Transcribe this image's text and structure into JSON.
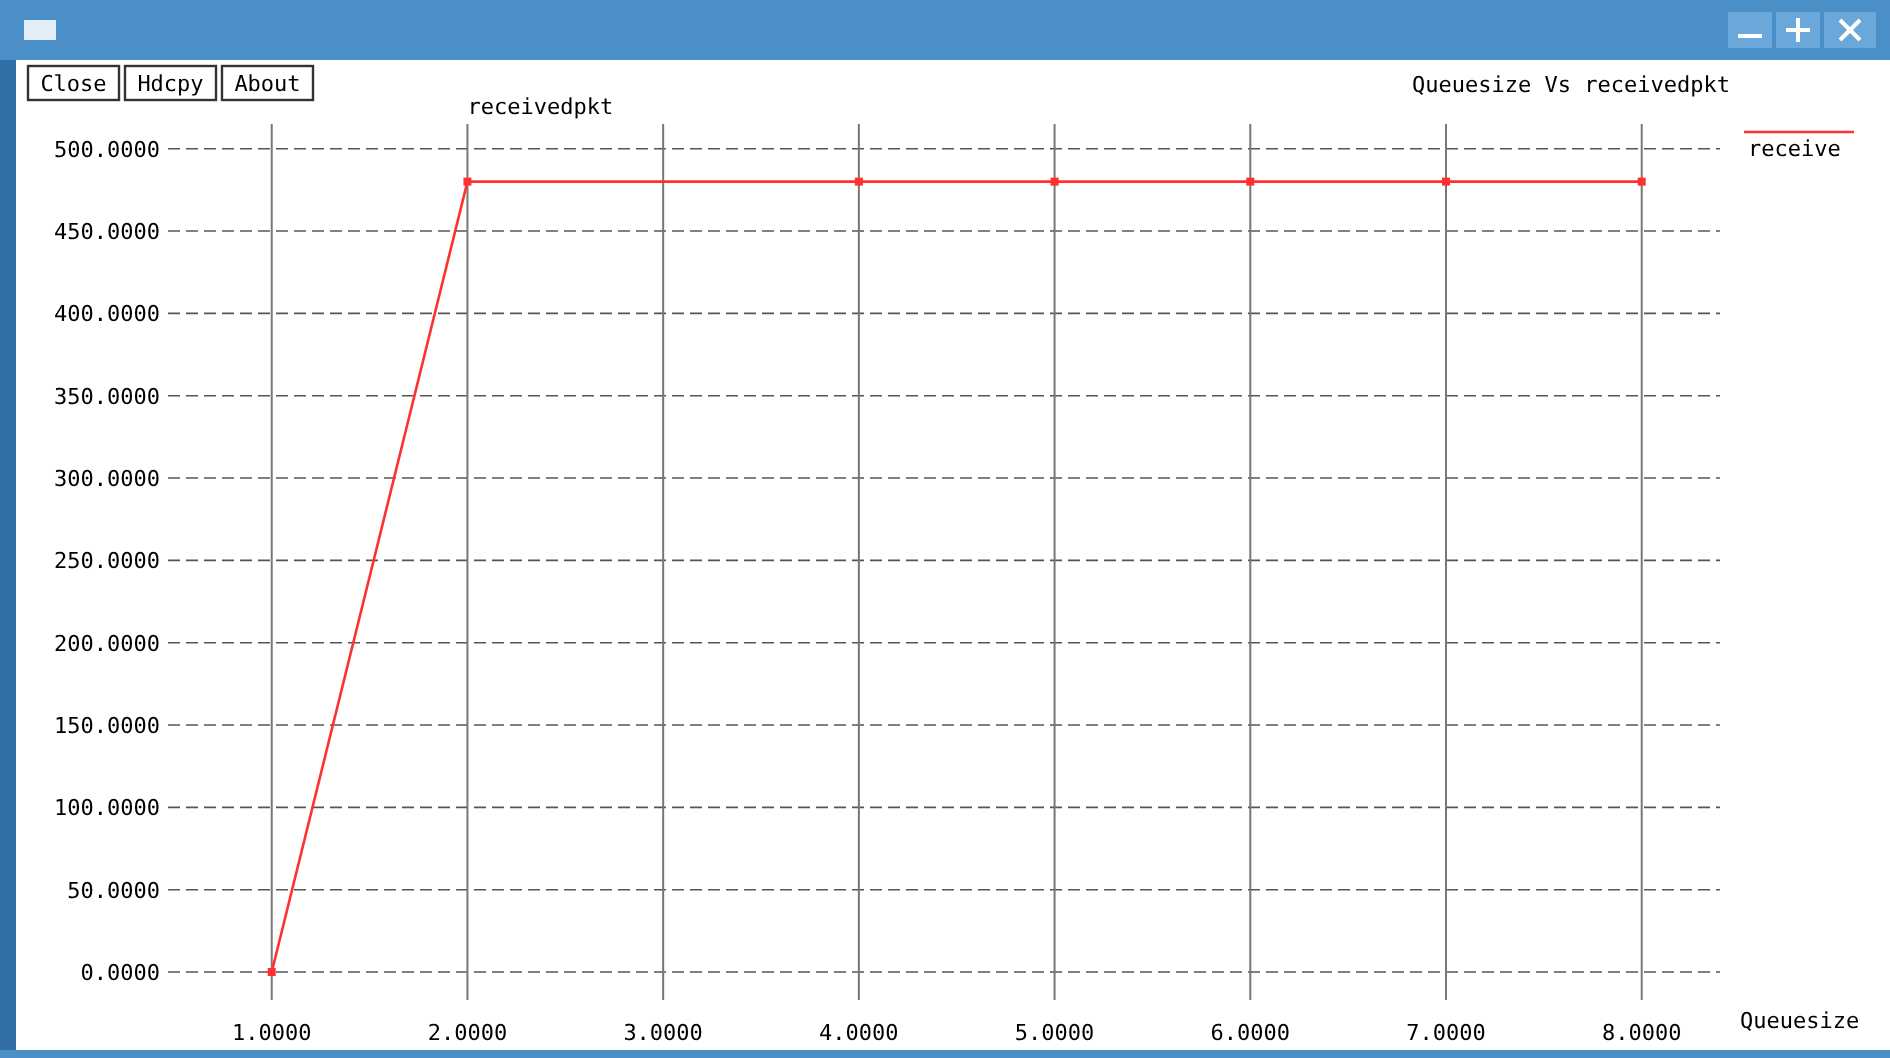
{
  "chart_data": {
    "type": "line",
    "title": "Queuesize Vs receivedpkt",
    "ylabel": "receivedpkt",
    "xlabel": "Queuesize",
    "annotations": [
      "Close",
      "Hdcpy",
      "About"
    ],
    "x": [
      1,
      2,
      4,
      5,
      6,
      7,
      8
    ],
    "series": [
      {
        "name": "receive",
        "color": "#ff3030",
        "values": [
          0,
          480,
          480,
          480,
          480,
          480,
          480
        ]
      }
    ],
    "xlim": [
      0.47,
      8.4
    ],
    "ylim": [
      -17,
      515
    ],
    "xticks": [
      {
        "value": 1,
        "label": "1.0000"
      },
      {
        "value": 2,
        "label": "2.0000"
      },
      {
        "value": 3,
        "label": "3.0000"
      },
      {
        "value": 4,
        "label": "4.0000"
      },
      {
        "value": 5,
        "label": "5.0000"
      },
      {
        "value": 6,
        "label": "6.0000"
      },
      {
        "value": 7,
        "label": "7.0000"
      },
      {
        "value": 8,
        "label": "8.0000"
      }
    ],
    "yticks": [
      {
        "value": 0,
        "label": "0.0000"
      },
      {
        "value": 50,
        "label": "50.0000"
      },
      {
        "value": 100,
        "label": "100.0000"
      },
      {
        "value": 150,
        "label": "150.0000"
      },
      {
        "value": 200,
        "label": "200.0000"
      },
      {
        "value": 250,
        "label": "250.0000"
      },
      {
        "value": 300,
        "label": "300.0000"
      },
      {
        "value": 350,
        "label": "350.0000"
      },
      {
        "value": 400,
        "label": "400.0000"
      },
      {
        "value": 450,
        "label": "450.0000"
      },
      {
        "value": 500,
        "label": "500.0000"
      }
    ],
    "grid": true,
    "legend": "top right",
    "marker": "square",
    "line_style": "solid"
  }
}
